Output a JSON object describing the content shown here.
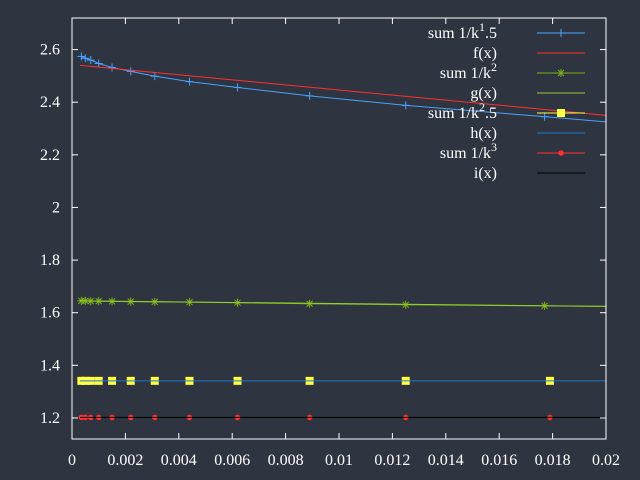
{
  "chart_data": {
    "type": "line",
    "title": "",
    "xlabel": "",
    "ylabel": "",
    "xlim": [
      0,
      0.02
    ],
    "ylim": [
      1.12,
      2.72
    ],
    "grid": false,
    "legend_position": "top-right",
    "background": "#2e3440",
    "axis_color": "#ffffff",
    "x_ticks": [
      {
        "value": 0,
        "label": "0"
      },
      {
        "value": 0.002,
        "label": "0.002"
      },
      {
        "value": 0.004,
        "label": "0.004"
      },
      {
        "value": 0.006,
        "label": "0.006"
      },
      {
        "value": 0.008,
        "label": "0.008"
      },
      {
        "value": 0.01,
        "label": "0.01"
      },
      {
        "value": 0.012,
        "label": "0.012"
      },
      {
        "value": 0.014,
        "label": "0.014"
      },
      {
        "value": 0.016,
        "label": "0.016"
      },
      {
        "value": 0.018,
        "label": "0.018"
      },
      {
        "value": 0.02,
        "label": "0.02"
      }
    ],
    "y_ticks": [
      {
        "value": 1.2,
        "label": "1.2"
      },
      {
        "value": 1.4,
        "label": "1.4"
      },
      {
        "value": 1.6,
        "label": "1.6"
      },
      {
        "value": 1.8,
        "label": "1.8"
      },
      {
        "value": 2.0,
        "label": "2"
      },
      {
        "value": 2.2,
        "label": "2.2"
      },
      {
        "value": 2.4,
        "label": "2.4"
      },
      {
        "value": 2.6,
        "label": "2.6"
      }
    ],
    "series": [
      {
        "name": "sum 1/k^1.5",
        "label_base": "sum 1/k",
        "label_exp": "1",
        "label_tail": ".5",
        "kind": "points-line",
        "marker": "plus",
        "color": "#4aa3ff",
        "points": [
          [
            0.00035,
            2.574
          ],
          [
            0.0005,
            2.567
          ],
          [
            0.0007,
            2.56
          ],
          [
            0.001,
            2.547
          ],
          [
            0.0015,
            2.532
          ],
          [
            0.0022,
            2.517
          ],
          [
            0.0031,
            2.499
          ],
          [
            0.0044,
            2.478
          ],
          [
            0.0062,
            2.456
          ],
          [
            0.0089,
            2.424
          ],
          [
            0.0125,
            2.388
          ],
          [
            0.0177,
            2.345
          ],
          [
            0.02,
            2.325
          ]
        ]
      },
      {
        "name": "f(x)",
        "label_base": "f(x)",
        "kind": "line",
        "color": "#ff3030",
        "points": [
          [
            0.0003,
            2.54
          ],
          [
            0.02,
            2.35
          ]
        ]
      },
      {
        "name": "sum 1/k^2",
        "label_base": "sum 1/k",
        "label_exp": "2",
        "label_tail": "",
        "kind": "points-line",
        "marker": "star",
        "color": "#7ab317",
        "points": [
          [
            0.00035,
            1.645
          ],
          [
            0.0005,
            1.645
          ],
          [
            0.0007,
            1.644
          ],
          [
            0.001,
            1.644
          ],
          [
            0.0015,
            1.643
          ],
          [
            0.0022,
            1.642
          ],
          [
            0.0031,
            1.641
          ],
          [
            0.0044,
            1.64
          ],
          [
            0.0062,
            1.638
          ],
          [
            0.0089,
            1.634
          ],
          [
            0.0125,
            1.63
          ],
          [
            0.0177,
            1.626
          ],
          [
            0.02,
            1.624
          ]
        ]
      },
      {
        "name": "g(x)",
        "label_base": "g(x)",
        "kind": "line",
        "color": "#9acd32",
        "points": [
          [
            0.0003,
            1.645
          ],
          [
            0.02,
            1.624
          ]
        ]
      },
      {
        "name": "sum 1/k^2.5",
        "label_base": "sum 1/k",
        "label_exp": "2",
        "label_tail": ".5",
        "kind": "points",
        "marker": "square",
        "color": "#ffff44",
        "points": [
          [
            0.00035,
            1.341
          ],
          [
            0.0005,
            1.341
          ],
          [
            0.0007,
            1.341
          ],
          [
            0.001,
            1.341
          ],
          [
            0.0015,
            1.341
          ],
          [
            0.0022,
            1.341
          ],
          [
            0.0031,
            1.341
          ],
          [
            0.0044,
            1.341
          ],
          [
            0.0062,
            1.341
          ],
          [
            0.0089,
            1.341
          ],
          [
            0.0125,
            1.341
          ],
          [
            0.0179,
            1.341
          ]
        ]
      },
      {
        "name": "h(x)",
        "label_base": "h(x)",
        "kind": "line",
        "color": "#1f78c8",
        "points": [
          [
            0.0003,
            1.341
          ],
          [
            0.02,
            1.341
          ]
        ]
      },
      {
        "name": "sum 1/k^3",
        "label_base": "sum 1/k",
        "label_exp": "3",
        "label_tail": "",
        "kind": "points",
        "marker": "dot",
        "color": "#ff3030",
        "points": [
          [
            0.00035,
            1.202
          ],
          [
            0.0005,
            1.202
          ],
          [
            0.0007,
            1.202
          ],
          [
            0.001,
            1.202
          ],
          [
            0.0015,
            1.202
          ],
          [
            0.0022,
            1.202
          ],
          [
            0.0031,
            1.202
          ],
          [
            0.0044,
            1.202
          ],
          [
            0.0062,
            1.202
          ],
          [
            0.0089,
            1.202
          ],
          [
            0.0125,
            1.202
          ],
          [
            0.0179,
            1.202
          ]
        ]
      },
      {
        "name": "i(x)",
        "label_base": "i(x)",
        "kind": "line",
        "color": "#000000",
        "points": [
          [
            0.0003,
            1.202
          ],
          [
            0.02,
            1.202
          ]
        ]
      }
    ]
  }
}
